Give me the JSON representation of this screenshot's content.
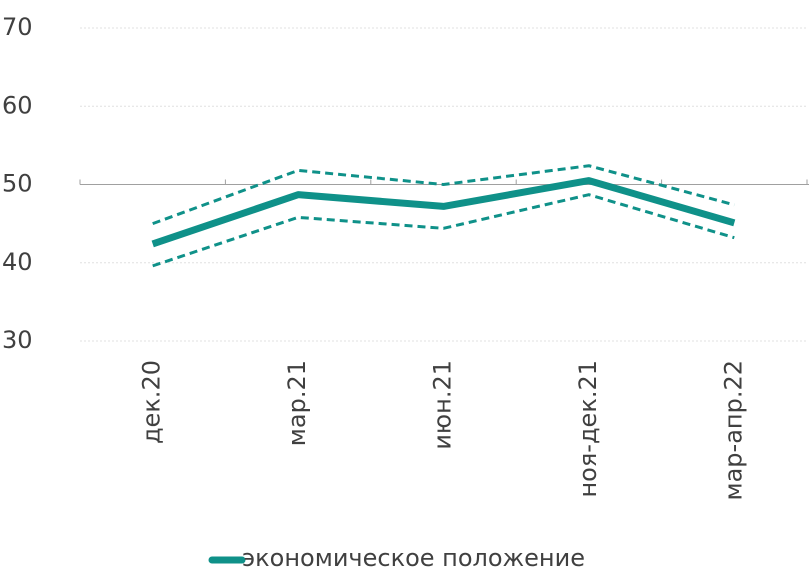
{
  "chart_data": {
    "type": "line",
    "categories": [
      "дек.20",
      "мар.21",
      "июн.21",
      "ноя-дек.21",
      "мар-апр.22"
    ],
    "series": [
      {
        "name": "экономическое положение",
        "color": "#0f9189",
        "values": [
          42.4,
          48.7,
          47.2,
          50.5,
          45.1
        ]
      },
      {
        "color": "#0f9189",
        "dashed": true,
        "values": [
          45.0,
          51.8,
          50.0,
          52.4,
          47.4
        ]
      },
      {
        "color": "#0f9189",
        "dashed": true,
        "values": [
          39.6,
          45.8,
          44.4,
          48.7,
          43.2
        ]
      }
    ],
    "ylim": [
      30,
      70
    ],
    "yticks": [
      30,
      40,
      50,
      60,
      70
    ],
    "x_axis_at": 50,
    "grid": true,
    "legend": "bottom"
  }
}
